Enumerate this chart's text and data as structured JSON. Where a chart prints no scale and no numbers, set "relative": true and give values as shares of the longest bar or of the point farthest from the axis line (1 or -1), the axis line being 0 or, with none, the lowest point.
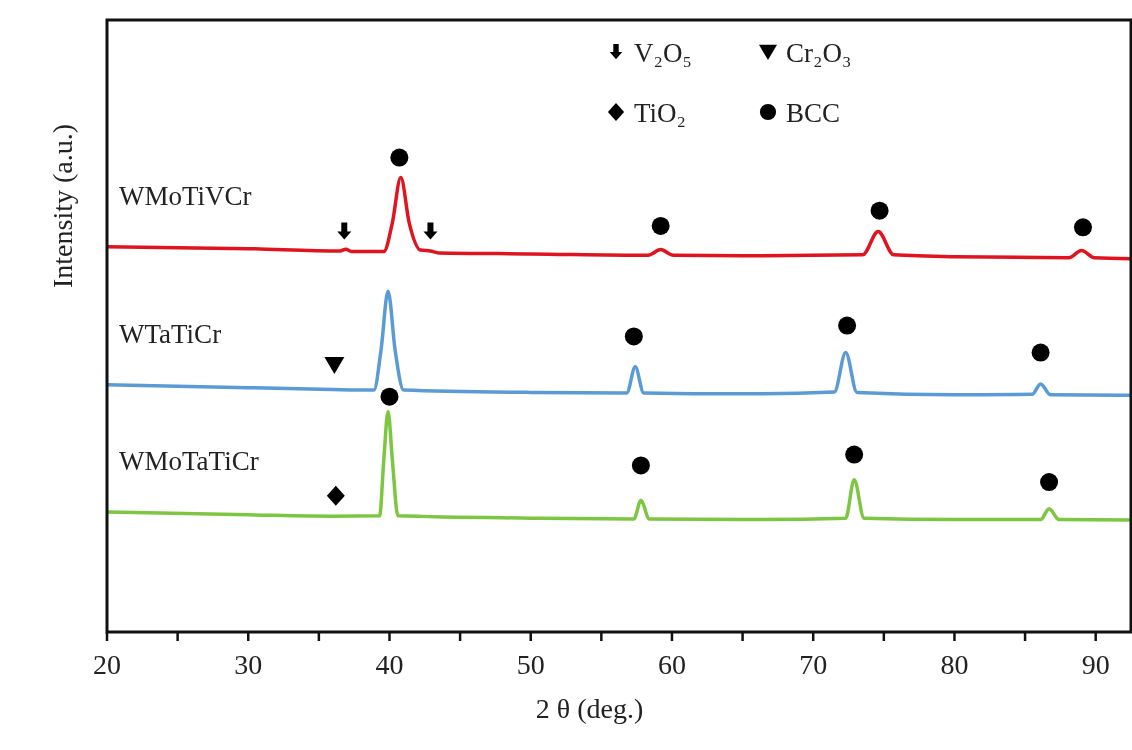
{
  "chart_data": {
    "type": "line",
    "relative": true,
    "xlabel": "2 θ (deg.)",
    "ylabel": "Intensity (a.u.)",
    "xlim": [
      20,
      92.5
    ],
    "xticks": [
      20,
      {
        "value": 25,
        "label": null
      },
      30,
      {
        "value": 35,
        "label": null
      },
      40,
      {
        "value": 45,
        "label": null
      },
      50,
      {
        "value": 55,
        "label": null
      },
      60,
      {
        "value": 65,
        "label": null
      },
      70,
      {
        "value": 75,
        "label": null
      },
      80,
      {
        "value": 85,
        "label": null
      },
      90
    ],
    "legend": "top",
    "grid": false,
    "line_style": "solid",
    "series": [
      {
        "name": "WMoTiVCr",
        "color": "#e0141e",
        "x": [
          20,
          30,
          36.5,
          36.9,
          37.3,
          39.6,
          40.2,
          40.8,
          41.4,
          42.2,
          42.9,
          43.5,
          50,
          58.3,
          59.2,
          60.1,
          65,
          73.5,
          74.6,
          75.7,
          80,
          88.1,
          89.0,
          89.9,
          92.5
        ],
        "values": [
          0.812,
          0.808,
          0.803,
          0.807,
          0.802,
          0.802,
          0.862,
          0.958,
          0.862,
          0.805,
          0.803,
          0.799,
          0.797,
          0.794,
          0.806,
          0.794,
          0.793,
          0.795,
          0.844,
          0.795,
          0.791,
          0.789,
          0.804,
          0.789,
          0.787
        ]
      },
      {
        "name": "WTaTiCr",
        "color": "#5b9bd5",
        "x": [
          20,
          30,
          36,
          38.9,
          39.4,
          39.9,
          40.4,
          41,
          50,
          56.8,
          57.4,
          58,
          65,
          71.5,
          72.3,
          73.1,
          80,
          85.5,
          86.1,
          86.8,
          92.5
        ],
        "values": [
          0.521,
          0.515,
          0.511,
          0.51,
          0.594,
          0.718,
          0.594,
          0.51,
          0.505,
          0.504,
          0.559,
          0.504,
          0.502,
          0.506,
          0.589,
          0.505,
          0.5,
          0.501,
          0.523,
          0.5,
          0.499
        ]
      },
      {
        "name": "WMoTaTiCr",
        "color": "#7dc642",
        "x": [
          20,
          30,
          36,
          39.3,
          39.6,
          39.9,
          40.2,
          40.6,
          50,
          57.3,
          57.8,
          58.4,
          65,
          72.3,
          72.9,
          73.6,
          80,
          86.1,
          86.7,
          87.4,
          92.5
        ],
        "values": [
          0.253,
          0.247,
          0.244,
          0.245,
          0.364,
          0.465,
          0.364,
          0.245,
          0.24,
          0.238,
          0.277,
          0.238,
          0.237,
          0.24,
          0.321,
          0.24,
          0.237,
          0.237,
          0.26,
          0.237,
          0.236
        ]
      },
      {
        "type": "scatter",
        "name": "V₂O₅",
        "color": "#000000",
        "x": [
          36.8,
          42.9
        ],
        "values": [
          0.844,
          0.844
        ]
      },
      {
        "type": "scatter",
        "name": "Cr₂O₃",
        "color": "#000000",
        "marker": "triangle",
        "x": [
          36.1
        ],
        "values": [
          0.563
        ]
      },
      {
        "type": "scatter",
        "name": "TiO₂",
        "color": "#000000",
        "marker": "diamond",
        "x": [
          36.2
        ],
        "values": [
          0.287
        ]
      },
      {
        "type": "scatter",
        "name": "BCC",
        "color": "#000000",
        "marker": "circle",
        "x": [
          40.7,
          59.2,
          74.7,
          89.1,
          40.0,
          57.3,
          72.4,
          86.1,
          57.8,
          72.9,
          86.7
        ],
        "values": [
          1,
          0.856,
          0.888,
          0.853,
          0.496,
          0.623,
          0.646,
          0.589,
          0.351,
          0.374,
          0.316
        ]
      }
    ]
  }
}
